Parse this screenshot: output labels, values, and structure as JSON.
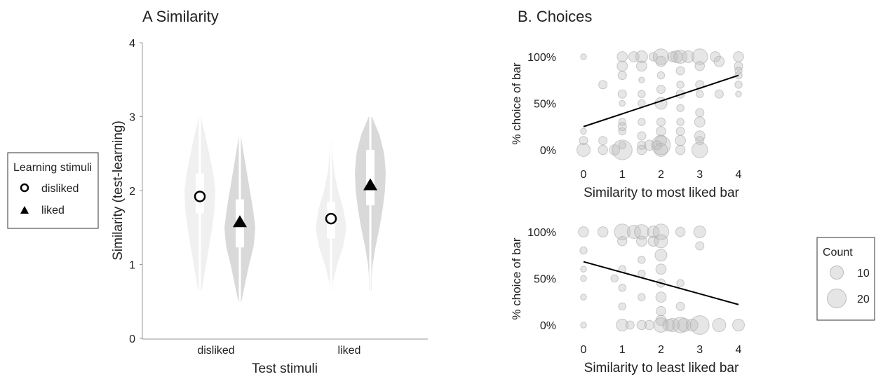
{
  "chart_data": [
    {
      "type": "violin",
      "title": "A Similarity",
      "xlabel": "Test stimuli",
      "ylabel": "Similarity (test-learning)",
      "ylim": [
        0,
        4
      ],
      "yticks": [
        "0",
        "1",
        "2",
        "3",
        "4"
      ],
      "categories": [
        "disliked",
        "liked"
      ],
      "legend": {
        "title": "Learning stimuli",
        "entries": [
          "disliked",
          "liked"
        ],
        "placement": "left"
      },
      "colors": {
        "disliked": "#f0f0f0",
        "liked": "#d9d9d9"
      },
      "density_grid": [
        0.5,
        0.75,
        1.0,
        1.25,
        1.5,
        1.75,
        2.0,
        2.25,
        2.5,
        2.75,
        3.0
      ],
      "violins": [
        {
          "test": "disliked",
          "learning": "disliked",
          "min": 0.65,
          "max": 3.0,
          "q1": 1.69,
          "q3": 2.23,
          "mean": 1.92,
          "density": [
            0,
            0.2,
            0.4,
            0.6,
            0.8,
            0.95,
            1.0,
            0.85,
            0.6,
            0.35,
            0.05
          ]
        },
        {
          "test": "disliked",
          "learning": "liked",
          "min": 0.5,
          "max": 2.72,
          "q1": 1.23,
          "q3": 1.88,
          "mean": 1.58,
          "density": [
            0.1,
            0.35,
            0.6,
            0.9,
            1.0,
            0.85,
            0.65,
            0.45,
            0.25,
            0.05,
            0
          ]
        },
        {
          "test": "liked",
          "learning": "disliked",
          "min": 0.65,
          "max": 2.67,
          "q1": 1.35,
          "q3": 1.85,
          "mean": 1.62,
          "density": [
            0,
            0.1,
            0.4,
            0.8,
            1.0,
            0.8,
            0.45,
            0.2,
            0.1,
            0,
            0
          ]
        },
        {
          "test": "liked",
          "learning": "liked",
          "min": 0.65,
          "max": 3.0,
          "q1": 1.8,
          "q3": 2.55,
          "mean": 2.08,
          "density": [
            0,
            0.05,
            0.15,
            0.35,
            0.6,
            0.8,
            0.95,
            1.0,
            0.9,
            0.6,
            0.1
          ]
        }
      ]
    },
    {
      "type": "scatter",
      "title": "B. Choices",
      "xlabel": "Similarity to most liked bar",
      "ylabel": "% choice of bar",
      "xlim": [
        0,
        4
      ],
      "ylim": [
        0,
        100
      ],
      "xticks": [
        "0",
        "1",
        "2",
        "3",
        "4"
      ],
      "yticks": [
        "0%",
        "50%",
        "100%"
      ],
      "fit": [
        [
          0,
          25
        ],
        [
          4,
          80
        ]
      ],
      "points": [
        [
          0,
          100,
          2
        ],
        [
          0,
          0,
          10
        ],
        [
          0,
          10,
          4
        ],
        [
          0,
          20,
          2
        ],
        [
          0.5,
          70,
          4
        ],
        [
          0.5,
          0,
          5
        ],
        [
          0.5,
          10,
          4
        ],
        [
          0.8,
          0,
          6
        ],
        [
          1,
          100,
          6
        ],
        [
          1,
          90,
          6
        ],
        [
          1,
          80,
          4
        ],
        [
          1,
          60,
          4
        ],
        [
          1,
          50,
          2
        ],
        [
          1,
          30,
          3
        ],
        [
          1,
          25,
          4
        ],
        [
          1,
          20,
          3
        ],
        [
          1,
          5,
          3
        ],
        [
          1,
          0,
          22
        ],
        [
          1.3,
          100,
          6
        ],
        [
          1.5,
          100,
          8
        ],
        [
          1.5,
          90,
          6
        ],
        [
          1.5,
          75,
          2
        ],
        [
          1.5,
          60,
          3
        ],
        [
          1.5,
          50,
          3
        ],
        [
          1.5,
          30,
          3
        ],
        [
          1.5,
          15,
          4
        ],
        [
          1.5,
          5,
          4
        ],
        [
          1.5,
          0,
          5
        ],
        [
          1.8,
          100,
          4
        ],
        [
          1.7,
          5,
          6
        ],
        [
          1.9,
          5,
          5
        ],
        [
          2,
          100,
          14
        ],
        [
          2,
          95,
          6
        ],
        [
          2,
          80,
          3
        ],
        [
          2,
          65,
          4
        ],
        [
          2,
          50,
          8
        ],
        [
          2,
          30,
          4
        ],
        [
          2,
          20,
          5
        ],
        [
          2,
          10,
          7
        ],
        [
          2,
          5,
          20
        ],
        [
          2,
          0,
          10
        ],
        [
          2.3,
          100,
          6
        ],
        [
          2.4,
          100,
          8
        ],
        [
          2.5,
          100,
          10
        ],
        [
          2.5,
          85,
          4
        ],
        [
          2.5,
          70,
          3
        ],
        [
          2.5,
          60,
          4
        ],
        [
          2.5,
          45,
          3
        ],
        [
          2.5,
          30,
          3
        ],
        [
          2.5,
          20,
          4
        ],
        [
          2.5,
          10,
          6
        ],
        [
          2.5,
          0,
          5
        ],
        [
          2.7,
          100,
          8
        ],
        [
          3,
          100,
          14
        ],
        [
          3,
          90,
          5
        ],
        [
          3,
          70,
          4
        ],
        [
          3,
          60,
          3
        ],
        [
          3,
          40,
          4
        ],
        [
          3,
          30,
          6
        ],
        [
          3,
          15,
          6
        ],
        [
          3,
          10,
          4
        ],
        [
          3,
          0,
          14
        ],
        [
          3.4,
          100,
          6
        ],
        [
          3.5,
          95,
          6
        ],
        [
          3.5,
          60,
          4
        ],
        [
          4,
          100,
          6
        ],
        [
          4,
          90,
          4
        ],
        [
          4,
          85,
          3
        ],
        [
          4,
          80,
          3
        ],
        [
          4,
          70,
          3
        ],
        [
          4,
          60,
          2
        ]
      ]
    },
    {
      "type": "scatter",
      "xlabel": "Similarity to least liked bar",
      "ylabel": "% choice of bar",
      "xlim": [
        0,
        4
      ],
      "ylim": [
        0,
        100
      ],
      "xticks": [
        "0",
        "1",
        "2",
        "3",
        "4"
      ],
      "yticks": [
        "0%",
        "50%",
        "100%"
      ],
      "fit": [
        [
          0,
          68
        ],
        [
          4,
          22
        ]
      ],
      "legend": {
        "title": "Count",
        "entries": [
          "10",
          "20"
        ],
        "placement": "right"
      },
      "points": [
        [
          0,
          100,
          6
        ],
        [
          0,
          80,
          3
        ],
        [
          0,
          60,
          2
        ],
        [
          0,
          50,
          2
        ],
        [
          0,
          30,
          2
        ],
        [
          0,
          0,
          2
        ],
        [
          0.5,
          100,
          6
        ],
        [
          0.8,
          50,
          3
        ],
        [
          1,
          100,
          14
        ],
        [
          1,
          90,
          5
        ],
        [
          1,
          60,
          3
        ],
        [
          1,
          40,
          3
        ],
        [
          1,
          20,
          3
        ],
        [
          1,
          0,
          8
        ],
        [
          1.2,
          0,
          4
        ],
        [
          1.3,
          100,
          10
        ],
        [
          1.5,
          100,
          12
        ],
        [
          1.5,
          90,
          6
        ],
        [
          1.5,
          70,
          3
        ],
        [
          1.5,
          55,
          3
        ],
        [
          1.5,
          30,
          3
        ],
        [
          1.5,
          0,
          5
        ],
        [
          1.7,
          0,
          5
        ],
        [
          1.8,
          100,
          8
        ],
        [
          1.8,
          90,
          6
        ],
        [
          2,
          100,
          14
        ],
        [
          2,
          90,
          10
        ],
        [
          2,
          75,
          8
        ],
        [
          2,
          60,
          6
        ],
        [
          2,
          45,
          4
        ],
        [
          2,
          30,
          6
        ],
        [
          2,
          15,
          5
        ],
        [
          2,
          5,
          6
        ],
        [
          2,
          0,
          12
        ],
        [
          2.2,
          0,
          8
        ],
        [
          2.3,
          0,
          10
        ],
        [
          2.5,
          100,
          5
        ],
        [
          2.5,
          0,
          14
        ],
        [
          2.6,
          0,
          10
        ],
        [
          2.8,
          0,
          8
        ],
        [
          2.5,
          20,
          4
        ],
        [
          2.5,
          45,
          3
        ],
        [
          3,
          100,
          8
        ],
        [
          3,
          85,
          4
        ],
        [
          3,
          0,
          20
        ],
        [
          3.5,
          0,
          10
        ],
        [
          4,
          0,
          8
        ]
      ]
    }
  ]
}
